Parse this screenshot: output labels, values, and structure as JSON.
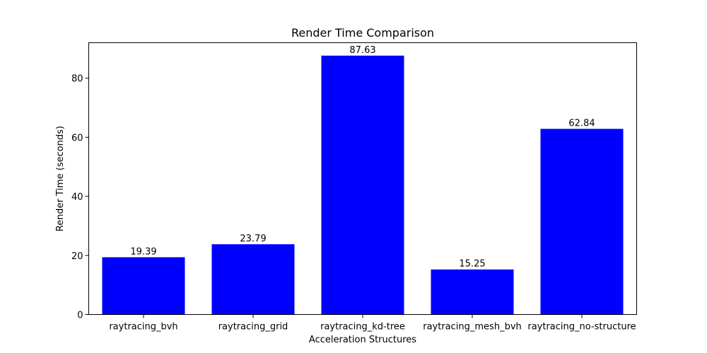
{
  "chart_data": {
    "type": "bar",
    "title": "Render Time Comparison",
    "xlabel": "Acceleration Structures",
    "ylabel": "Render Time (seconds)",
    "categories": [
      "raytracing_bvh",
      "raytracing_grid",
      "raytracing_kd-tree",
      "raytracing_mesh_bvh",
      "raytracing_no-structure"
    ],
    "values": [
      19.39,
      23.79,
      87.63,
      15.25,
      62.84
    ],
    "value_labels": [
      "19.39",
      "23.79",
      "87.63",
      "15.25",
      "62.84"
    ],
    "ylim": [
      0,
      92
    ],
    "yticks": [
      0,
      20,
      40,
      60,
      80
    ],
    "ytick_labels": [
      "0",
      "20",
      "40",
      "60",
      "80"
    ],
    "bar_color": "#0000ff",
    "grid": false,
    "legend": "none"
  }
}
